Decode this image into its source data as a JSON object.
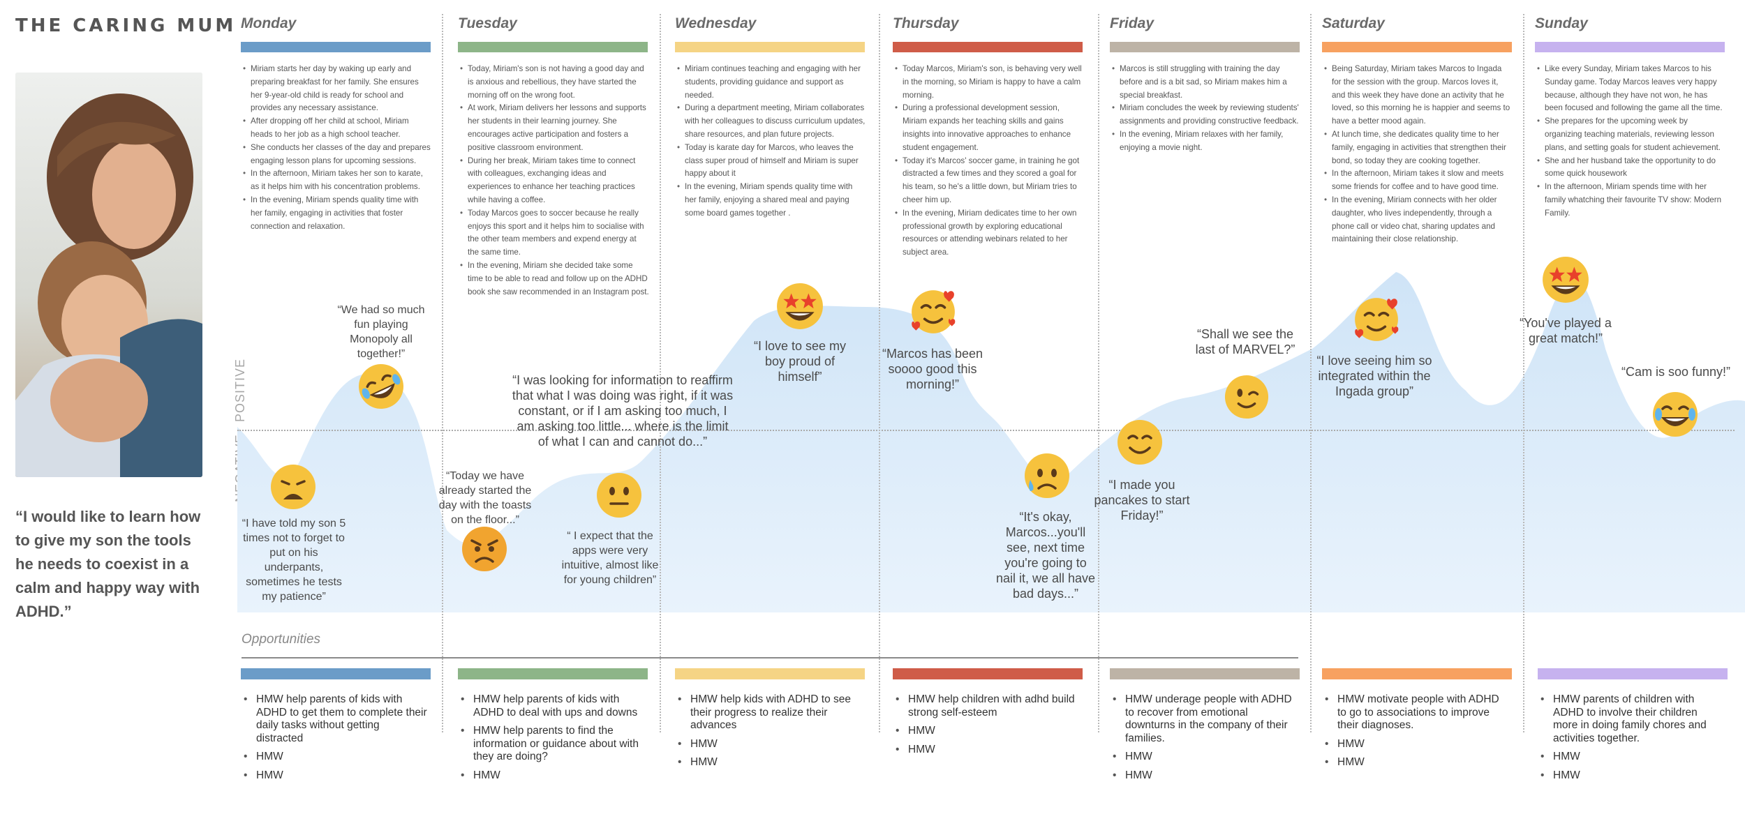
{
  "persona": {
    "title": "THE CARING MUM",
    "quote": "“I would like to learn how to give my son the tools he needs to coexist in a calm and happy way with ADHD.”"
  },
  "axis": {
    "positive": "POSITIVE",
    "negative": "NEGATIVE"
  },
  "days": [
    {
      "name": "Monday",
      "color": "#6b9cc8",
      "activities": [
        "Miriam starts her day by waking up early and preparing breakfast for her family. She ensures her 9-year-old child is ready for school and provides any necessary assistance.",
        "After dropping off her child at school, Miriam heads to her job as a high school teacher.",
        "She conducts her classes of the day and prepares engaging lesson plans for upcoming sessions.",
        "In the afternoon, Miriam takes her son to karate, as it helps him with his concentration problems.",
        "In the evening, Miriam spends quality time with her family, engaging in activities that foster connection and relaxation."
      ],
      "opportunities": [
        "HMW help parents of kids with ADHD to get them to complete their daily tasks without getting distracted",
        "HMW",
        "HMW"
      ]
    },
    {
      "name": "Tuesday",
      "color": "#8db588",
      "activities": [
        "Today, Miriam's son is not having a good day and is anxious and rebellious, they have started the morning off on the wrong foot.",
        "At work, Miriam delivers her lessons and supports her students in their learning journey. She encourages active participation and fosters a positive classroom environment.",
        "During her break, Miriam takes time to connect with colleagues, exchanging ideas and experiences to enhance her teaching practices while having a coffee.",
        "Today Marcos goes to soccer because he really enjoys this sport and it helps him to socialise with the other team members and expend energy at the same time.",
        "In the evening, Miriam she decided take some time to be able to read and follow up on the ADHD book she saw recommended in an Instagram post."
      ],
      "opportunities": [
        "HMW help parents of kids with ADHD to deal with ups and downs",
        "HMW help parents to find the information or guidance about with they are doing?",
        "HMW"
      ]
    },
    {
      "name": "Wednesday",
      "color": "#f5d485",
      "activities": [
        "Miriam continues teaching and engaging with her students, providing guidance and support as needed.",
        "During a department meeting, Miriam collaborates with her colleagues to discuss curriculum updates, share resources, and plan future projects.",
        "Today is karate day for Marcos, who leaves the class super proud of himself and Miriam is super happy about it",
        "In the evening, Miriam spends quality time with her family, enjoying a shared meal and paying some board games together ."
      ],
      "opportunities": [
        "HMW help kids with ADHD to see their progress to realize their advances",
        "HMW",
        "HMW"
      ]
    },
    {
      "name": "Thursday",
      "color": "#cf5c48",
      "activities": [
        "Today Marcos, Miriam's son, is behaving very well in the morning, so Miriam is happy to have a calm morning.",
        "During a professional development session, Miriam expands her teaching skills and gains insights into innovative approaches to enhance student engagement.",
        "Today it's Marcos' soccer game, in training he got distracted a few times and they scored a goal for his team, so he's a little down, but Miriam tries to cheer him up.",
        "In the evening, Miriam dedicates time to her own professional growth by exploring educational resources or attending webinars related to her subject area."
      ],
      "opportunities": [
        "HMW help children with adhd build strong self-esteem",
        "HMW",
        "HMW"
      ]
    },
    {
      "name": "Friday",
      "color": "#bdb3a6",
      "activities": [
        "Marcos is still struggling with training the day before and is a bit sad, so Miriam makes him a special breakfast.",
        "Miriam concludes the week by reviewing students' assignments and providing constructive feedback.",
        "In the evening, Miriam relaxes with her family, enjoying a movie night."
      ],
      "opportunities": [
        "HMW underage people with ADHD to recover from emotional downturns in the company of their families.",
        "HMW",
        "HMW"
      ]
    },
    {
      "name": "Saturday",
      "color": "#f7a160",
      "activities": [
        "Being Saturday, Miriam takes Marcos to Ingada for the session with the group. Marcos loves it, and this week they have done an activity that he loved, so this morning he is happier and seems to have a better mood again.",
        "At lunch time, she dedicates quality time to her family, engaging in activities that strengthen their bond, so today they are cooking together.",
        "In the afternoon, Miriam takes it slow and meets some friends for coffee and to have good time.",
        "In the evening, Miriam connects with her older daughter, who lives independently, through a phone call or video chat, sharing updates and maintaining their close relationship."
      ],
      "opportunities": [
        "HMW motivate people with ADHD to go to associations to improve their diagnoses.",
        "HMW",
        "HMW"
      ]
    },
    {
      "name": "Sunday",
      "color": "#c6b2ef",
      "activities": [
        "Like every Sunday, Miriam takes Marcos to his Sunday game. Today Marcos leaves very happy because, although they have not won, he has been focused and following the game all the time.",
        "She prepares for the upcoming week by organizing teaching materials, reviewing lesson plans, and setting goals for student achievement.",
        "She and her husband take the opportunity to do some quick housework",
        "In the afternoon, Miriam spends time with her family whatching their favourite TV show: Modern Family."
      ],
      "opportunities": [
        "HMW parents of children with ADHD to involve their children more in doing family chores and activities together.",
        "HMW",
        "HMW"
      ]
    }
  ],
  "quotes": [
    "“I have told my son 5 times not to forget to put on his underpants, sometimes he tests my patience”",
    "“We had so much fun playing Monopoly all together!”",
    "“Today we have already started the day with the toasts on the floor...”",
    "“I was looking for information to reaffirm that what I was doing was right, if it was constant, or if I am asking too much, I am asking too little... where is the limit of what I can and cannot do...”",
    "“ I expect that the apps were very intuitive, almost like for young children”",
    "“I love to see my boy proud of himself”",
    "“Marcos has been soooo good this morning!”",
    "“It's okay, Marcos...you'll see, next time you're going to nail it, we all have bad days...”",
    "“I made you pancakes to start Friday!”",
    "“Shall we see the last of MARVEL?”",
    "“I love seeing him so integrated within the Ingada group”",
    "“You've played a great match!”",
    "“Cam is soo funny!”"
  ],
  "emotions": [
    {
      "icon": "weary-face-icon",
      "color": "#f6c23d"
    },
    {
      "icon": "rolling-laughing-face-icon",
      "color": "#f6c23d"
    },
    {
      "icon": "angry-face-icon",
      "color": "#f6c23d"
    },
    {
      "icon": "neutral-face-icon",
      "color": "#f6c23d"
    },
    {
      "icon": "star-struck-face-icon",
      "color": "#f6c23d"
    },
    {
      "icon": "smiling-face-with-hearts-icon",
      "color": "#f6c23d"
    },
    {
      "icon": "sad-sweat-face-icon",
      "color": "#f6c23d"
    },
    {
      "icon": "smiling-face-icon",
      "color": "#f6c23d"
    },
    {
      "icon": "winking-face-icon",
      "color": "#f6c23d"
    },
    {
      "icon": "smiling-face-with-hearts-icon",
      "color": "#f6c23d"
    },
    {
      "icon": "star-struck-face-icon",
      "color": "#f6c23d"
    },
    {
      "icon": "tears-of-joy-face-icon",
      "color": "#f6c23d"
    }
  ],
  "opportunities_title": "Opportunities"
}
